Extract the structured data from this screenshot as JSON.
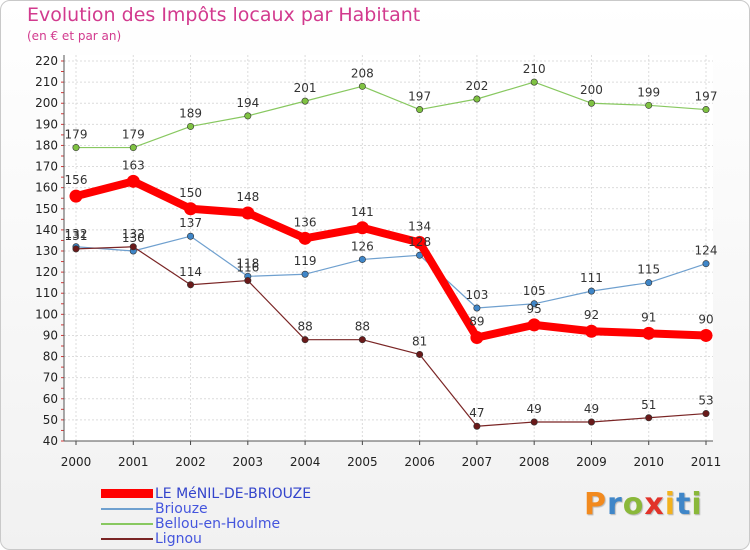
{
  "header": {
    "title": "Evolution des Impôts locaux par Habitant",
    "subtitle": "(en € et par an)"
  },
  "logo": {
    "letters": [
      "P",
      "r",
      "o",
      "x",
      "i",
      "t",
      "i"
    ],
    "colors": [
      "#f28a1e",
      "#3f86c8",
      "#8ab83a",
      "#e2332a",
      "#f2b21e",
      "#3f86c8",
      "#8ab83a"
    ]
  },
  "chart_data": {
    "type": "line",
    "title": "Evolution des Impôts locaux par Habitant",
    "subtitle": "(en € et par an)",
    "x": [
      "2000",
      "2001",
      "2002",
      "2003",
      "2004",
      "2005",
      "2006",
      "2007",
      "2008",
      "2009",
      "2010",
      "2011"
    ],
    "ylim": [
      40,
      220
    ],
    "yticks": [
      40,
      50,
      60,
      70,
      80,
      90,
      100,
      110,
      120,
      130,
      140,
      150,
      160,
      170,
      180,
      190,
      200,
      210,
      220
    ],
    "grid": true,
    "legend_position": "bottom-left",
    "series": [
      {
        "name": "LE MéNIL-DE-BRIOUZE",
        "values": [
          156,
          163,
          150,
          148,
          136,
          141,
          134,
          89,
          95,
          92,
          91,
          90
        ],
        "color": "#ff0000",
        "marker": "#ff0000",
        "width": 8,
        "emphasis": true
      },
      {
        "name": "Briouze",
        "values": [
          132,
          130,
          137,
          118,
          119,
          126,
          128,
          103,
          105,
          111,
          115,
          124
        ],
        "color": "#6fa0cf",
        "marker": "#3f86c8",
        "width": 1.2
      },
      {
        "name": "Bellou-en-Houlme",
        "values": [
          179,
          179,
          189,
          194,
          201,
          208,
          197,
          202,
          210,
          200,
          199,
          197
        ],
        "color": "#88c860",
        "marker": "#7fc242",
        "width": 1.2
      },
      {
        "name": "Lignou",
        "values": [
          131,
          132,
          114,
          116,
          88,
          88,
          81,
          47,
          49,
          49,
          51,
          53
        ],
        "color": "#7a2525",
        "marker": "#6a1a1a",
        "width": 1.2
      }
    ]
  }
}
